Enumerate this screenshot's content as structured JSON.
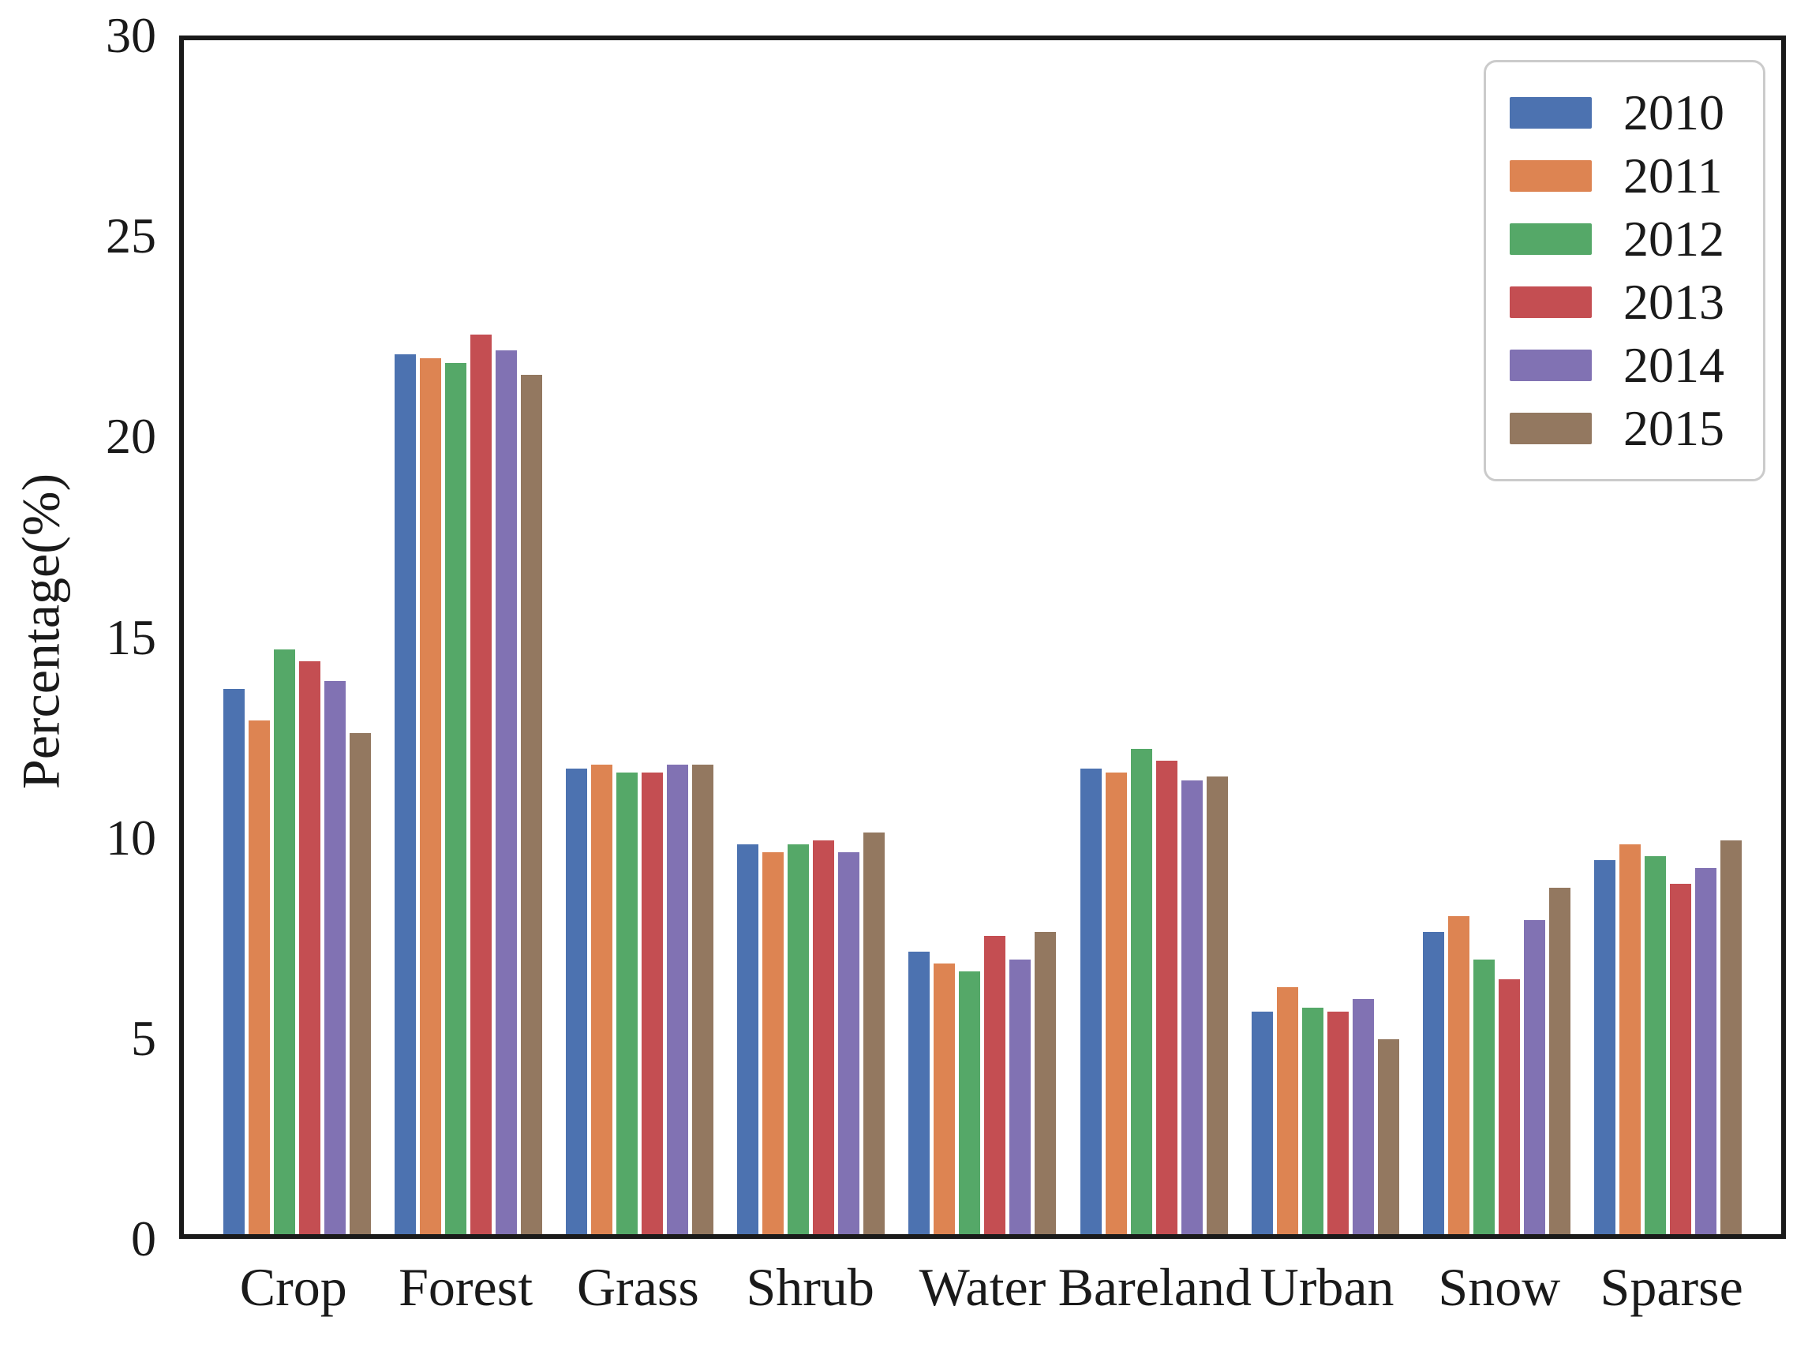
{
  "chart_data": {
    "type": "bar",
    "title": "",
    "xlabel": "",
    "ylabel": "Percentage(%)",
    "ylim": [
      0,
      30
    ],
    "yticks": [
      0,
      5,
      10,
      15,
      20,
      25,
      30
    ],
    "grid": false,
    "legend_position": "upper right",
    "categories": [
      "Crop",
      "Forest",
      "Grass",
      "Shrub",
      "Water",
      "Bareland",
      "Urban",
      "Snow",
      "Sparse"
    ],
    "series": [
      {
        "name": "2010",
        "color": "#4C72B0",
        "values": [
          13.7,
          22.1,
          11.7,
          9.8,
          7.1,
          11.7,
          5.6,
          7.6,
          9.4
        ]
      },
      {
        "name": "2011",
        "color": "#DD8452",
        "values": [
          12.9,
          22.0,
          11.8,
          9.6,
          6.8,
          11.6,
          6.2,
          8.0,
          9.8
        ]
      },
      {
        "name": "2012",
        "color": "#55A868",
        "values": [
          14.7,
          21.9,
          11.6,
          9.8,
          6.6,
          12.2,
          5.7,
          6.9,
          9.5
        ]
      },
      {
        "name": "2013",
        "color": "#C44E52",
        "values": [
          14.4,
          22.6,
          11.6,
          9.9,
          7.5,
          11.9,
          5.6,
          6.4,
          8.8
        ]
      },
      {
        "name": "2014",
        "color": "#8172B3",
        "values": [
          13.9,
          22.2,
          11.8,
          9.6,
          6.9,
          11.4,
          5.9,
          7.9,
          9.2
        ]
      },
      {
        "name": "2015",
        "color": "#937860",
        "values": [
          12.6,
          21.6,
          11.8,
          10.1,
          7.6,
          11.5,
          4.9,
          8.7,
          9.9
        ]
      }
    ],
    "frame_color": "#1a1a1a",
    "text_color": "#1a1a1a"
  }
}
